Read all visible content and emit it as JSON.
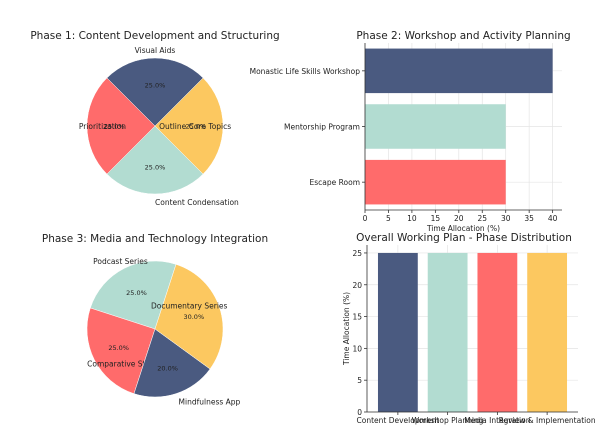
{
  "chart_data": [
    {
      "type": "pie",
      "title": "Phase 1: Content Development and Structuring",
      "slices": [
        {
          "label": "Visual Aids",
          "value": 25.0,
          "pct_label": "25.0%",
          "color": "#4a5a80"
        },
        {
          "label": "Prioritization",
          "value": 25.0,
          "pct_label": "25.0%",
          "color": "#ff6b6b"
        },
        {
          "label": "Content Condensation",
          "value": 25.0,
          "pct_label": "25.0%",
          "color": "#b2dcd1"
        },
        {
          "label": "Outline Core Topics",
          "value": 25.0,
          "pct_label": "25.0%",
          "color": "#fcc860"
        }
      ]
    },
    {
      "type": "bar",
      "orientation": "horizontal",
      "title": "Phase 2: Workshop and Activity Planning",
      "categories": [
        "Monastic Life Skills Workshop",
        "Mentorship Program",
        "Escape Room"
      ],
      "values": [
        40,
        30,
        30
      ],
      "colors": [
        "#4a5a80",
        "#b2dcd1",
        "#ff6b6b"
      ],
      "xlabel": "Time Allocation (%)",
      "xlim": [
        0,
        42
      ],
      "xticks": [
        0,
        5,
        10,
        15,
        20,
        25,
        30,
        35,
        40
      ],
      "grid": true
    },
    {
      "type": "pie",
      "title": "Phase 3: Media and Technology Integration",
      "slices": [
        {
          "label": "Podcast Series",
          "value": 25.0,
          "pct_label": "25.0%",
          "color": "#b2dcd1"
        },
        {
          "label": "Comparative Study",
          "value": 25.0,
          "pct_label": "25.0%",
          "color": "#ff6b6b"
        },
        {
          "label": "Mindfulness App",
          "value": 20.0,
          "pct_label": "20.0%",
          "color": "#4a5a80"
        },
        {
          "label": "Documentary Series",
          "value": 30.0,
          "pct_label": "30.0%",
          "color": "#fcc860"
        }
      ]
    },
    {
      "type": "bar",
      "orientation": "vertical",
      "title": "Overall Working Plan - Phase Distribution",
      "categories": [
        "Content Development",
        "Workshop Planning",
        "Media Integration",
        "Review & Implementation"
      ],
      "values": [
        25,
        25,
        25,
        25
      ],
      "colors": [
        "#4a5a80",
        "#b2dcd1",
        "#ff6b6b",
        "#fcc860"
      ],
      "ylabel": "Time Allocation (%)",
      "ylim": [
        0,
        26.25
      ],
      "yticks": [
        0,
        5,
        10,
        15,
        20,
        25
      ],
      "grid": true
    }
  ]
}
